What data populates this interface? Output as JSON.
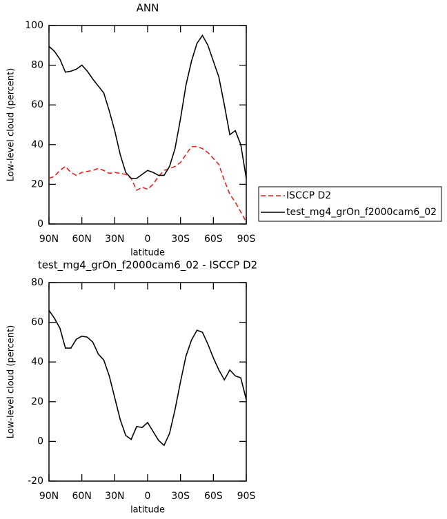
{
  "chart_data": [
    {
      "type": "line",
      "title": "ANN",
      "x_label": "latitude",
      "y_label": "Low-level cloud (percent)",
      "x": [
        90,
        85,
        80,
        75,
        70,
        65,
        60,
        55,
        50,
        45,
        40,
        35,
        30,
        25,
        20,
        15,
        10,
        5,
        0,
        -5,
        -10,
        -15,
        -20,
        -25,
        -30,
        -35,
        -40,
        -45,
        -50,
        -55,
        -60,
        -65,
        -70,
        -75,
        -80,
        -85,
        -90
      ],
      "xlim": [
        90,
        -90
      ],
      "xticks": [
        {
          "value": 90,
          "label": "90N"
        },
        {
          "value": 60,
          "label": "60N"
        },
        {
          "value": 30,
          "label": "30N"
        },
        0,
        {
          "value": -30,
          "label": "30S"
        },
        {
          "value": -60,
          "label": "60S"
        },
        {
          "value": -90,
          "label": "90S"
        }
      ],
      "ylim": [
        0,
        100
      ],
      "yticks": [
        0,
        20,
        40,
        60,
        80,
        100
      ],
      "legend": "right",
      "series": [
        {
          "name": "ISCCP D2",
          "color": "#e8211b",
          "linestyle": "dashed",
          "values": [
            23,
            24,
            27,
            29,
            26,
            24.5,
            26,
            26.5,
            27,
            28,
            27,
            25.5,
            26,
            25.5,
            25,
            23,
            17,
            18.5,
            17.5,
            20,
            24,
            27,
            28,
            29,
            31,
            35,
            39,
            39,
            38,
            36,
            33,
            30,
            22,
            15,
            11,
            6,
            1
          ]
        },
        {
          "name": "test_mg4_grOn_f2000cam6_02",
          "color": "#000000",
          "linestyle": "solid",
          "values": [
            89.5,
            87,
            83,
            76.5,
            77,
            78,
            80,
            77,
            73,
            69.5,
            66,
            57,
            47,
            35,
            26,
            23,
            23,
            25,
            27,
            26,
            24.5,
            24.5,
            29,
            38,
            53,
            70,
            82,
            91,
            95,
            90,
            82,
            74,
            60,
            45,
            47,
            40,
            23
          ]
        }
      ]
    },
    {
      "type": "line",
      "title": "test_mg4_grOn_f2000cam6_02 - ISCCP D2",
      "x_label": "latitude",
      "y_label": "Low-level cloud (percent)",
      "x": [
        90,
        85,
        80,
        75,
        70,
        65,
        60,
        55,
        50,
        45,
        40,
        35,
        30,
        25,
        20,
        15,
        10,
        5,
        0,
        -5,
        -10,
        -15,
        -20,
        -25,
        -30,
        -35,
        -40,
        -45,
        -50,
        -55,
        -60,
        -65,
        -70,
        -75,
        -80,
        -85,
        -90
      ],
      "xlim": [
        90,
        -90
      ],
      "xticks": [
        {
          "value": 90,
          "label": "90N"
        },
        {
          "value": 60,
          "label": "60N"
        },
        {
          "value": 30,
          "label": "30N"
        },
        0,
        {
          "value": -30,
          "label": "30S"
        },
        {
          "value": -60,
          "label": "60S"
        },
        {
          "value": -90,
          "label": "90S"
        }
      ],
      "ylim": [
        -20,
        80
      ],
      "yticks": [
        -20,
        0,
        20,
        40,
        60,
        80
      ],
      "series": [
        {
          "color": "#000000",
          "linestyle": "solid",
          "values": [
            66,
            62,
            57,
            47,
            47,
            51.5,
            53,
            52.5,
            50,
            44,
            41,
            33,
            22,
            11,
            3,
            1,
            7.5,
            7,
            9.5,
            5,
            0.5,
            -2,
            4,
            16,
            30,
            43,
            51,
            56,
            55,
            49,
            42,
            36,
            31,
            36,
            33,
            32,
            21
          ]
        }
      ]
    }
  ]
}
